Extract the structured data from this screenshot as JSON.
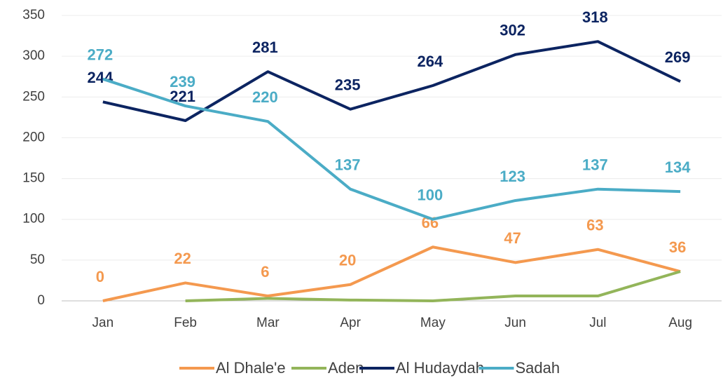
{
  "chart_data": {
    "type": "line",
    "categories": [
      "Jan",
      "Feb",
      "Mar",
      "Apr",
      "May",
      "Jun",
      "Jul",
      "Aug"
    ],
    "series": [
      {
        "name": "Al Dhale'e",
        "color": "#f4994f",
        "data_labels": true,
        "values": [
          0,
          22,
          6,
          20,
          66,
          47,
          63,
          36
        ]
      },
      {
        "name": "Aden",
        "color": "#93b55a",
        "data_labels": false,
        "values": [
          null,
          0,
          3,
          1,
          0,
          6,
          6,
          36
        ]
      },
      {
        "name": "Al Hudaydah",
        "color": "#0c2461",
        "data_labels": true,
        "values": [
          244,
          221,
          281,
          235,
          264,
          302,
          318,
          269
        ]
      },
      {
        "name": "Sadah",
        "color": "#4bacc6",
        "data_labels": true,
        "values": [
          272,
          239,
          220,
          137,
          100,
          123,
          137,
          134
        ]
      }
    ],
    "ylim": [
      0,
      350
    ],
    "yticks": [
      0,
      50,
      100,
      150,
      200,
      250,
      300,
      350
    ],
    "grid": true,
    "legend": "bottom"
  }
}
